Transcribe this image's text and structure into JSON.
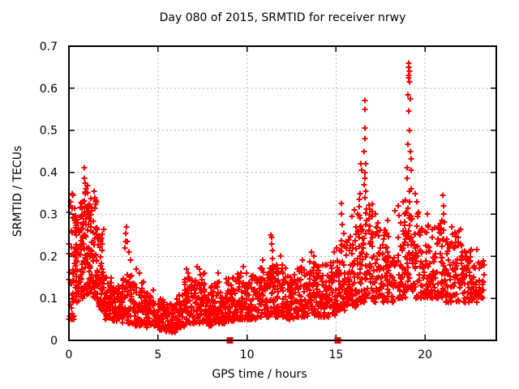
{
  "title": "Day 080 of 2015, SRMTID for receiver nrwy",
  "chart_data": {
    "type": "scatter",
    "title": "Day 080 of 2015, SRMTID for receiver nrwy",
    "xlabel": "GPS time / hours",
    "ylabel": "SRMTID / TECUs",
    "xlim": [
      0,
      24
    ],
    "ylim": [
      0,
      0.7
    ],
    "xticks": [
      [
        0,
        "0"
      ],
      [
        5,
        "5"
      ],
      [
        10,
        "10"
      ],
      [
        15,
        "15"
      ],
      [
        20,
        "20"
      ]
    ],
    "yticks": [
      [
        0,
        "0"
      ],
      [
        0.1,
        "0.1"
      ],
      [
        0.2,
        "0.2"
      ],
      [
        0.3,
        "0.3"
      ],
      [
        0.4,
        "0.4"
      ],
      [
        0.5,
        "0.5"
      ],
      [
        0.6,
        "0.6"
      ],
      [
        0.7,
        "0.7"
      ]
    ],
    "grid": true,
    "legend": "none",
    "marker": "plus",
    "marker_color": "#ff0000",
    "grid_color": "#b4b4b4",
    "seed": 20150080,
    "bands": [
      [
        0.0,
        0.3,
        0.05,
        0.34,
        40
      ],
      [
        0.3,
        0.6,
        0.09,
        0.31,
        48
      ],
      [
        0.6,
        0.9,
        0.1,
        0.34,
        52
      ],
      [
        0.9,
        1.2,
        0.11,
        0.37,
        55
      ],
      [
        1.2,
        1.6,
        0.1,
        0.35,
        60
      ],
      [
        1.6,
        2.0,
        0.07,
        0.27,
        55
      ],
      [
        2.0,
        2.4,
        0.05,
        0.17,
        45
      ],
      [
        2.4,
        3.0,
        0.045,
        0.13,
        60
      ],
      [
        3.0,
        3.6,
        0.04,
        0.16,
        60
      ],
      [
        3.6,
        4.2,
        0.035,
        0.14,
        58
      ],
      [
        4.2,
        4.8,
        0.03,
        0.12,
        58
      ],
      [
        4.8,
        5.4,
        0.025,
        0.1,
        62
      ],
      [
        5.4,
        6.0,
        0.02,
        0.09,
        58
      ],
      [
        6.0,
        6.5,
        0.03,
        0.11,
        50
      ],
      [
        6.5,
        7.0,
        0.04,
        0.15,
        55
      ],
      [
        7.0,
        7.6,
        0.04,
        0.16,
        60
      ],
      [
        7.6,
        8.2,
        0.035,
        0.13,
        58
      ],
      [
        8.2,
        8.8,
        0.04,
        0.145,
        58
      ],
      [
        8.8,
        9.4,
        0.045,
        0.15,
        58
      ],
      [
        9.4,
        10.0,
        0.05,
        0.16,
        58
      ],
      [
        10.0,
        10.6,
        0.05,
        0.155,
        58
      ],
      [
        10.6,
        11.2,
        0.055,
        0.175,
        60
      ],
      [
        11.2,
        11.6,
        0.06,
        0.2,
        45
      ],
      [
        11.6,
        12.2,
        0.055,
        0.18,
        58
      ],
      [
        12.2,
        12.8,
        0.05,
        0.16,
        58
      ],
      [
        12.8,
        13.4,
        0.055,
        0.175,
        60
      ],
      [
        13.4,
        14.0,
        0.06,
        0.19,
        60
      ],
      [
        14.0,
        14.6,
        0.055,
        0.18,
        60
      ],
      [
        14.6,
        15.2,
        0.06,
        0.19,
        60
      ],
      [
        15.2,
        15.7,
        0.07,
        0.24,
        55
      ],
      [
        15.7,
        16.2,
        0.08,
        0.27,
        55
      ],
      [
        16.2,
        16.6,
        0.09,
        0.32,
        48
      ],
      [
        16.6,
        17.1,
        0.1,
        0.33,
        55
      ],
      [
        17.1,
        17.7,
        0.09,
        0.27,
        55
      ],
      [
        17.7,
        18.3,
        0.09,
        0.27,
        55
      ],
      [
        18.3,
        18.9,
        0.1,
        0.31,
        55
      ],
      [
        18.9,
        19.3,
        0.12,
        0.4,
        52
      ],
      [
        19.3,
        19.9,
        0.1,
        0.31,
        55
      ],
      [
        19.9,
        20.5,
        0.1,
        0.28,
        55
      ],
      [
        20.5,
        21.1,
        0.1,
        0.29,
        55
      ],
      [
        21.1,
        21.7,
        0.09,
        0.26,
        55
      ],
      [
        21.7,
        22.3,
        0.09,
        0.25,
        55
      ],
      [
        22.3,
        23.0,
        0.09,
        0.22,
        50
      ],
      [
        23.0,
        23.35,
        0.1,
        0.2,
        25
      ]
    ],
    "peaks": [
      [
        0.2,
        0.35
      ],
      [
        0.25,
        0.345
      ],
      [
        0.85,
        0.41
      ],
      [
        0.88,
        0.385
      ],
      [
        0.9,
        0.375
      ],
      [
        0.95,
        0.36
      ],
      [
        1.4,
        0.355
      ],
      [
        1.45,
        0.34
      ],
      [
        1.55,
        0.33
      ],
      [
        3.12,
        0.22
      ],
      [
        3.17,
        0.235
      ],
      [
        3.2,
        0.255
      ],
      [
        3.24,
        0.27
      ],
      [
        3.3,
        0.235
      ],
      [
        3.35,
        0.21
      ],
      [
        3.45,
        0.19
      ],
      [
        3.8,
        0.17
      ],
      [
        3.95,
        0.16
      ],
      [
        6.62,
        0.17
      ],
      [
        6.7,
        0.16
      ],
      [
        7.2,
        0.175
      ],
      [
        7.32,
        0.17
      ],
      [
        8.4,
        0.16
      ],
      [
        9.8,
        0.175
      ],
      [
        10.9,
        0.19
      ],
      [
        11.35,
        0.25
      ],
      [
        11.4,
        0.245
      ],
      [
        11.38,
        0.23
      ],
      [
        11.45,
        0.215
      ],
      [
        11.9,
        0.2
      ],
      [
        13.1,
        0.19
      ],
      [
        13.6,
        0.21
      ],
      [
        13.75,
        0.2
      ],
      [
        14.9,
        0.21
      ],
      [
        15.05,
        0.22
      ],
      [
        15.3,
        0.325
      ],
      [
        15.32,
        0.3
      ],
      [
        15.36,
        0.275
      ],
      [
        15.42,
        0.255
      ],
      [
        15.9,
        0.295
      ],
      [
        16.05,
        0.31
      ],
      [
        16.3,
        0.335
      ],
      [
        16.35,
        0.35
      ],
      [
        16.38,
        0.42
      ],
      [
        16.42,
        0.405
      ],
      [
        16.6,
        0.57
      ],
      [
        16.63,
        0.55
      ],
      [
        16.6,
        0.505
      ],
      [
        16.64,
        0.48
      ],
      [
        16.58,
        0.45
      ],
      [
        16.66,
        0.42
      ],
      [
        16.6,
        0.4
      ],
      [
        16.62,
        0.385
      ],
      [
        16.56,
        0.37
      ],
      [
        16.66,
        0.355
      ],
      [
        16.6,
        0.34
      ],
      [
        17.2,
        0.3
      ],
      [
        17.35,
        0.28
      ],
      [
        17.9,
        0.285
      ],
      [
        18.5,
        0.32
      ],
      [
        18.75,
        0.33
      ],
      [
        19.1,
        0.66
      ],
      [
        19.08,
        0.65
      ],
      [
        19.12,
        0.64
      ],
      [
        19.1,
        0.63
      ],
      [
        19.09,
        0.625
      ],
      [
        19.11,
        0.615
      ],
      [
        19.05,
        0.585
      ],
      [
        19.15,
        0.575
      ],
      [
        19.1,
        0.545
      ],
      [
        19.12,
        0.5
      ],
      [
        19.05,
        0.467
      ],
      [
        19.16,
        0.45
      ],
      [
        19.2,
        0.432
      ],
      [
        19.0,
        0.41
      ],
      [
        19.22,
        0.405
      ],
      [
        19.45,
        0.35
      ],
      [
        19.55,
        0.33
      ],
      [
        20.15,
        0.3
      ],
      [
        21.0,
        0.345
      ],
      [
        21.03,
        0.32
      ],
      [
        21.06,
        0.3
      ],
      [
        20.97,
        0.285
      ],
      [
        21.5,
        0.27
      ],
      [
        21.9,
        0.26
      ],
      [
        22.0,
        0.265
      ]
    ],
    "axis_markers": {
      "shape": "filled-square",
      "color": "#ff0000",
      "points": [
        [
          9.04,
          0
        ],
        [
          15.1,
          0
        ]
      ]
    }
  }
}
